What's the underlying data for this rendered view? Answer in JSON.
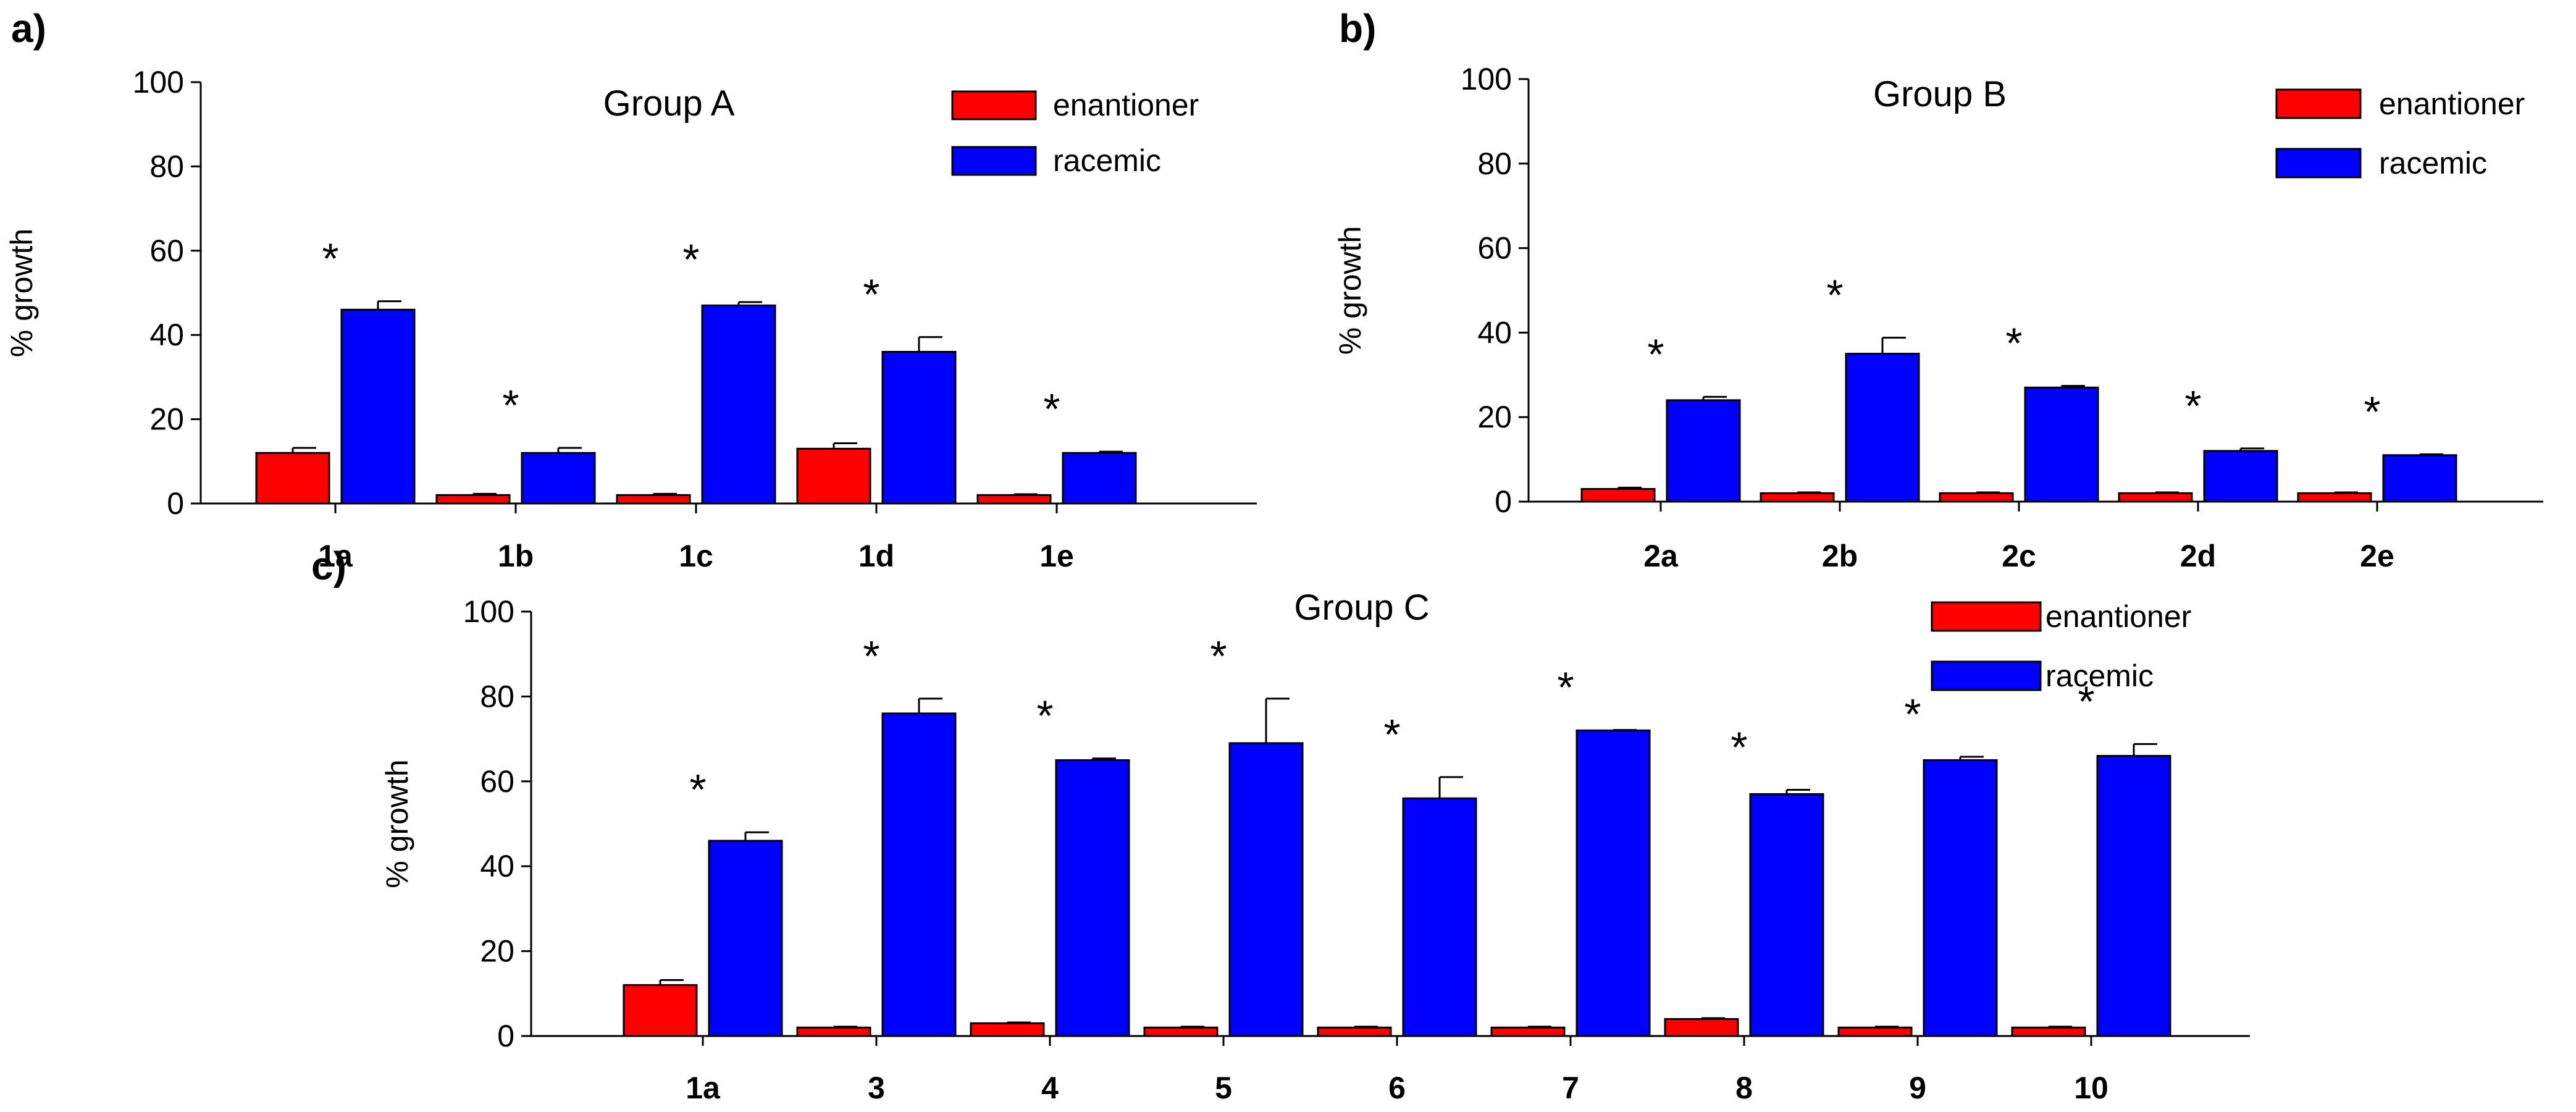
{
  "colors": {
    "enantioner": "#ff0000",
    "racemic": "#0000ff",
    "axis": "#000000"
  },
  "chart_data": [
    {
      "panel": "a)",
      "type": "bar",
      "title": "Group A",
      "xlabel": "",
      "ylabel": "% growth",
      "ylim": [
        0,
        100
      ],
      "yticks": [
        0,
        20,
        40,
        60,
        80,
        100
      ],
      "legend_position": "top-right",
      "categories": [
        "1a",
        "1b",
        "1c",
        "1d",
        "1e"
      ],
      "series": [
        {
          "name": "enantioner",
          "color": "#ff0000",
          "values": [
            12,
            2,
            2,
            13,
            2
          ],
          "errors": [
            1.2,
            0.3,
            0.3,
            1.3,
            0.2
          ]
        },
        {
          "name": "racemic",
          "color": "#0000ff",
          "values": [
            46,
            12,
            47,
            36,
            12
          ],
          "errors": [
            2,
            1.2,
            0.8,
            3.5,
            0.3
          ]
        }
      ],
      "annotations": [
        "*",
        "*",
        "*",
        "*",
        "*"
      ]
    },
    {
      "panel": "b)",
      "type": "bar",
      "title": "Group B",
      "xlabel": "",
      "ylabel": "% growth",
      "ylim": [
        0,
        100
      ],
      "yticks": [
        0,
        20,
        40,
        60,
        80,
        100
      ],
      "legend_position": "top-right",
      "categories": [
        "2a",
        "2b",
        "2c",
        "2d",
        "2e"
      ],
      "series": [
        {
          "name": "enantioner",
          "color": "#ff0000",
          "values": [
            3,
            2,
            2,
            2,
            2
          ],
          "errors": [
            0.3,
            0.2,
            0.2,
            0.2,
            0.2
          ]
        },
        {
          "name": "racemic",
          "color": "#0000ff",
          "values": [
            24,
            35,
            27,
            12,
            11
          ],
          "errors": [
            0.8,
            3.8,
            0.4,
            0.6,
            0.2
          ]
        }
      ],
      "annotations": [
        "*",
        "*",
        "*",
        "*",
        "*"
      ]
    },
    {
      "panel": "c)",
      "type": "bar",
      "title": "Group C",
      "xlabel": "",
      "ylabel": "% growth",
      "ylim": [
        0,
        100
      ],
      "yticks": [
        0,
        20,
        40,
        60,
        80,
        100
      ],
      "legend_position": "top-right",
      "categories": [
        "1a",
        "3",
        "4",
        "5",
        "6",
        "7",
        "8",
        "9",
        "10"
      ],
      "series": [
        {
          "name": "enantioner",
          "color": "#ff0000",
          "values": [
            12,
            2,
            3,
            2,
            2,
            2,
            4,
            2,
            2
          ],
          "errors": [
            1.2,
            0.2,
            0.2,
            0.2,
            0.2,
            0.2,
            0.2,
            0.2,
            0.2
          ]
        },
        {
          "name": "racemic",
          "color": "#0000ff",
          "values": [
            46,
            76,
            65,
            69,
            56,
            72,
            57,
            65,
            66
          ],
          "errors": [
            2,
            3.5,
            0.4,
            10.5,
            5,
            0.1,
            1,
            0.8,
            2.8
          ]
        }
      ],
      "annotations": [
        "*",
        "*",
        "*",
        "*",
        "*",
        "*",
        "*",
        "*",
        "*"
      ]
    }
  ]
}
